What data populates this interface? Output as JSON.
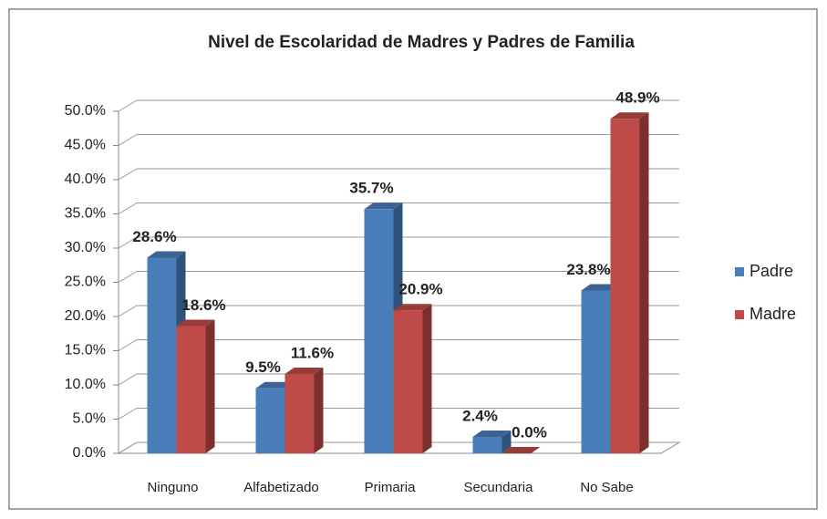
{
  "chart_data": {
    "type": "bar3d",
    "title": "Nivel de Escolaridad de Madres y Padres de Familia",
    "categories": [
      "Ninguno",
      "Alfabetizado",
      "Primaria",
      "Secundaria",
      "No Sabe"
    ],
    "series": [
      {
        "name": "Padre",
        "color": "#4a7ebb",
        "values": [
          28.6,
          9.5,
          35.7,
          2.4,
          23.8
        ],
        "value_labels": [
          "28.6%",
          "9.5%",
          "35.7%",
          "2.4%",
          "23.8%"
        ]
      },
      {
        "name": "Madre",
        "color": "#be4b48",
        "values": [
          18.6,
          11.6,
          20.9,
          0.0,
          48.9
        ],
        "value_labels": [
          "18.6%",
          "11.6%",
          "20.9%",
          "0.0%",
          "48.9%"
        ]
      }
    ],
    "ylim": [
      0,
      50
    ],
    "yticks": [
      {
        "value": 0,
        "label": "0.0%"
      },
      {
        "value": 5,
        "label": "5.0%"
      },
      {
        "value": 10,
        "label": "10.0%"
      },
      {
        "value": 15,
        "label": "15.0%"
      },
      {
        "value": 20,
        "label": "20.0%"
      },
      {
        "value": 25,
        "label": "25.0%"
      },
      {
        "value": 30,
        "label": "30.0%"
      },
      {
        "value": 35,
        "label": "35.0%"
      },
      {
        "value": 40,
        "label": "40.0%"
      },
      {
        "value": 45,
        "label": "45.0%"
      },
      {
        "value": 50,
        "label": "50.0%"
      }
    ],
    "grid": true,
    "legend": "right"
  }
}
